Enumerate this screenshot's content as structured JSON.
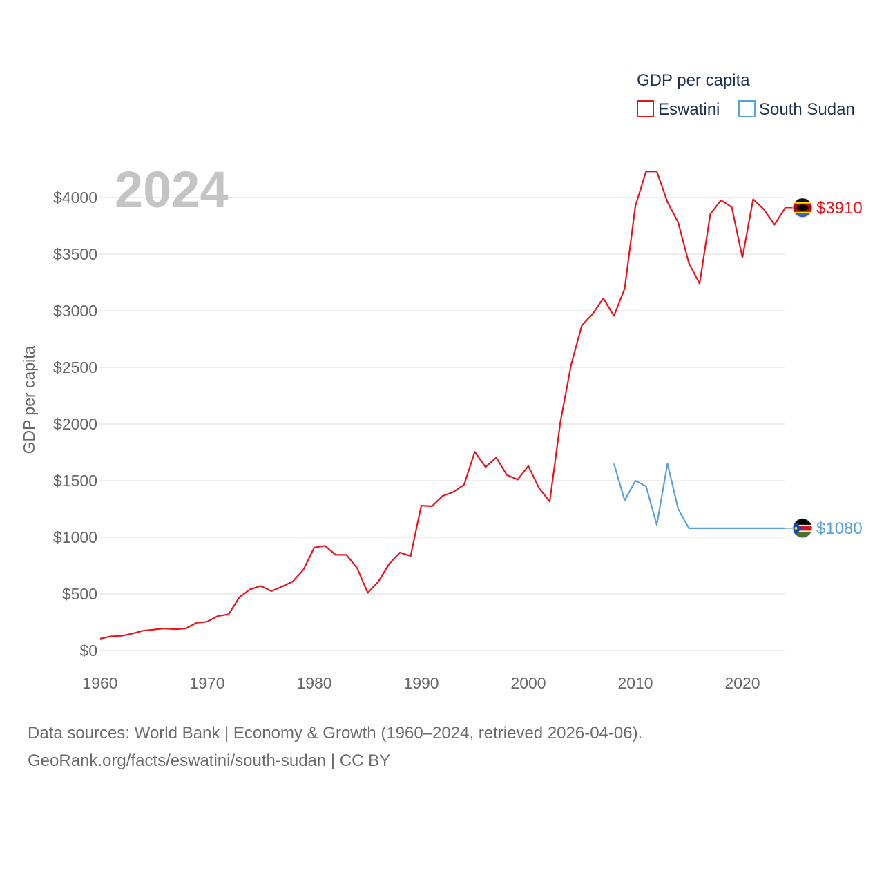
{
  "chart_data": {
    "type": "line",
    "year_label": "2024",
    "ylabel": "GDP per capita",
    "xlim": [
      1960,
      2024
    ],
    "ylim": [
      0,
      4200
    ],
    "x_ticks": [
      1960,
      1970,
      1980,
      1990,
      2000,
      2010,
      2020
    ],
    "x_tick_labels": [
      "1960",
      "1970",
      "1980",
      "1990",
      "2000",
      "2010",
      "2020"
    ],
    "y_ticks": [
      0,
      500,
      1000,
      1500,
      2000,
      2500,
      3000,
      3500,
      4000
    ],
    "y_tick_labels": [
      "$0",
      "$500",
      "$1000",
      "$1500",
      "$2000",
      "$2500",
      "$3000",
      "$3500",
      "$4000"
    ],
    "legend": {
      "title": "GDP per capita",
      "position": "top-right",
      "entries": [
        {
          "name": "Eswatini",
          "color": "#e8141c"
        },
        {
          "name": "South Sudan",
          "color": "#5aa0e0"
        }
      ]
    },
    "series": [
      {
        "name": "Eswatini",
        "color": "#e8141c",
        "end_label": "$3910",
        "flag_icon": "eswatini-flag-icon",
        "x": [
          1960,
          1961,
          1962,
          1963,
          1964,
          1965,
          1966,
          1967,
          1968,
          1969,
          1970,
          1971,
          1972,
          1973,
          1974,
          1975,
          1976,
          1977,
          1978,
          1979,
          1980,
          1981,
          1982,
          1983,
          1984,
          1985,
          1986,
          1987,
          1988,
          1989,
          1990,
          1991,
          1992,
          1993,
          1994,
          1995,
          1996,
          1997,
          1998,
          1999,
          2000,
          2001,
          2002,
          2003,
          2004,
          2005,
          2006,
          2007,
          2008,
          2009,
          2010,
          2011,
          2012,
          2013,
          2014,
          2015,
          2016,
          2017,
          2018,
          2019,
          2020,
          2021,
          2022,
          2023,
          2024
        ],
        "values": [
          105,
          125,
          130,
          150,
          175,
          185,
          195,
          188,
          195,
          245,
          255,
          305,
          320,
          470,
          540,
          570,
          525,
          565,
          610,
          715,
          910,
          925,
          845,
          845,
          730,
          510,
          610,
          765,
          865,
          835,
          1280,
          1275,
          1365,
          1400,
          1465,
          1755,
          1620,
          1705,
          1550,
          1510,
          1630,
          1435,
          1315,
          2020,
          2525,
          2870,
          2970,
          3110,
          2955,
          3195,
          3925,
          4230,
          4230,
          3960,
          3780,
          3420,
          3240,
          3855,
          3975,
          3915,
          3470,
          3985,
          3895,
          3760,
          3910
        ]
      },
      {
        "name": "South Sudan",
        "color": "#5aa0e0",
        "end_label": "$1080",
        "flag_icon": "south-sudan-flag-icon",
        "x": [
          2008,
          2009,
          2010,
          2011,
          2012,
          2013,
          2014,
          2015,
          2016,
          2017,
          2018,
          2019,
          2020,
          2021,
          2022,
          2023,
          2024
        ],
        "values": [
          1650,
          1325,
          1500,
          1450,
          1110,
          1650,
          1250,
          1080,
          1080,
          1080,
          1080,
          1080,
          1080,
          1080,
          1080,
          1080,
          1080
        ]
      }
    ]
  },
  "footer": {
    "line1": "Data sources: World Bank | Economy & Growth (1960–2024, retrieved 2026-04-06).",
    "line2": "GeoRank.org/facts/eswatini/south-sudan | CC BY"
  }
}
